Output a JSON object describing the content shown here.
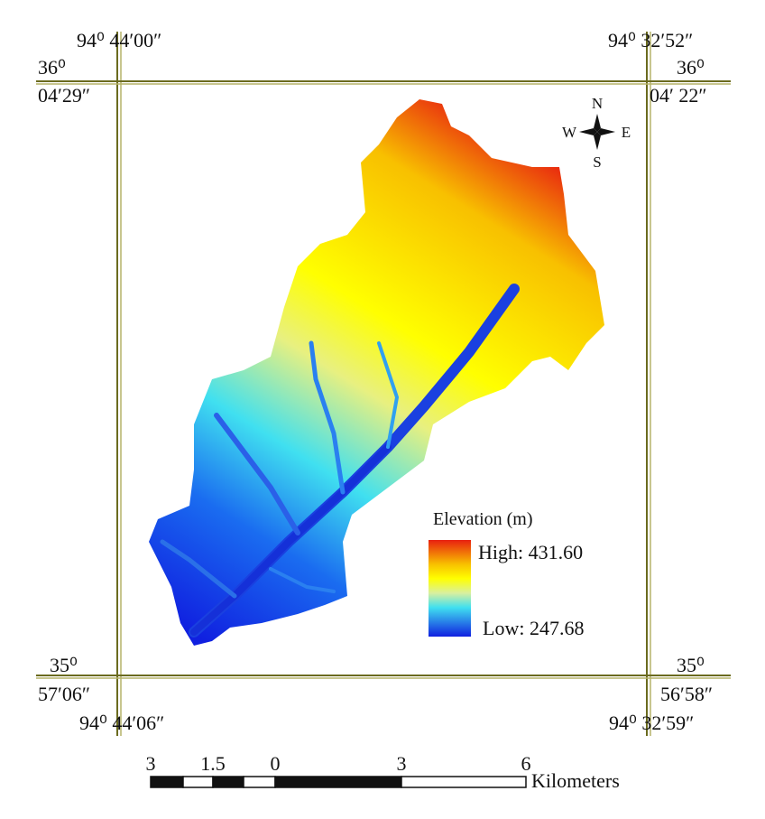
{
  "frame": {
    "top_left": {
      "longitude": "94⁰ 44′00″",
      "latitude_deg": "36⁰",
      "latitude_min": "04′29″"
    },
    "top_right": {
      "longitude": "94⁰ 32′52″",
      "latitude_deg": "36⁰",
      "latitude_min": "04′ 22″"
    },
    "bottom_left": {
      "longitude": "94⁰ 44′06″",
      "latitude_deg": "35⁰",
      "latitude_min": "57′06″"
    },
    "bottom_right": {
      "longitude": "94⁰ 32′59″",
      "latitude_deg": "35⁰",
      "latitude_min": "56′58″"
    }
  },
  "compass": {
    "north": "N",
    "south": "S",
    "west": "W",
    "east": "E"
  },
  "legend": {
    "title": "Elevation (m)",
    "high": "High: 431.60",
    "low": "Low: 247.68"
  },
  "scale_bar": {
    "ticks": [
      "3",
      "1.5",
      "0",
      "3",
      "6"
    ],
    "unit": "Kilometers"
  }
}
